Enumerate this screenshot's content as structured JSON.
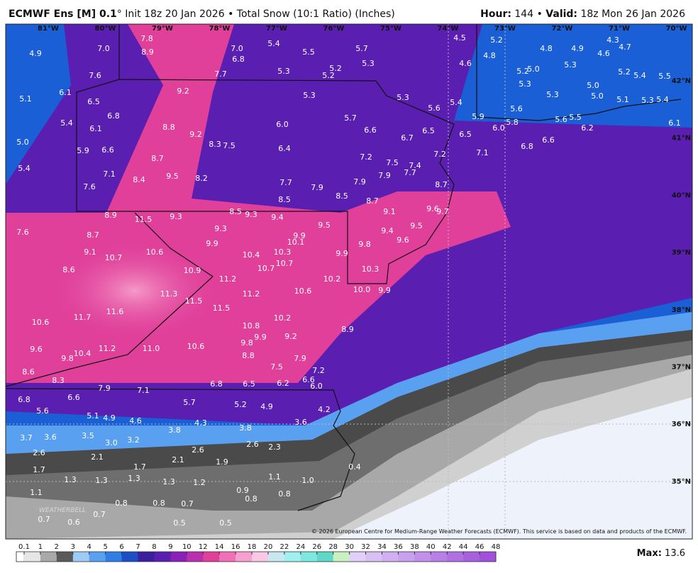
{
  "header": {
    "title_bold": "ECMWF Ens [M] 0.1",
    "title_rest": "° Init 18z 20 Jan 2026 • Total Snow (10:1 Ratio) (Inches)",
    "hour_label": "Hour:",
    "hour_value": " 144 • ",
    "valid_label": "Valid:",
    "valid_value": " 18z Mon 26 Jan 2026"
  },
  "map": {
    "lon_labels": [
      "81°W",
      "80°W",
      "79°W",
      "78°W",
      "77°W",
      "76°W",
      "75°W",
      "74°W",
      "73°W",
      "72°W",
      "71°W",
      "70°W"
    ],
    "lat_labels": [
      "42°N",
      "41°N",
      "40°N",
      "39°N",
      "38°N",
      "37°N",
      "36°N",
      "35°N"
    ],
    "labels": [
      "7.8",
      "4.9",
      "7.0",
      "8.9",
      "7.0",
      "5.4",
      "5.5",
      "5.7",
      "4.5",
      "5.2",
      "4.3",
      "4.7",
      "4.8",
      "4.9",
      "4.6",
      "4.8",
      "6.8",
      "5.3",
      "4.6",
      "5.3",
      "5.2",
      "5.2",
      "5.3",
      "5.2",
      "5.0",
      "5.2",
      "5.4",
      "5.5",
      "7.6",
      "7.7",
      "6.1",
      "5.1",
      "9.2",
      "5.3",
      "5.3",
      "5.3",
      "5.0",
      "5.3",
      "5.0",
      "5.1",
      "5.3",
      "5.4",
      "6.5",
      "5.4",
      "5.6",
      "5.6",
      "6.8",
      "5.7",
      "5.9",
      "5.6",
      "5.5",
      "5.4",
      "6.0",
      "5.8",
      "6.1",
      "6.0",
      "6.2",
      "8.8",
      "6.1",
      "9.2",
      "6.6",
      "6.5",
      "6.5",
      "6.7",
      "5.0",
      "8.3",
      "7.5",
      "6.4",
      "6.6",
      "6.8",
      "5.9",
      "6.6",
      "7.1",
      "7.2",
      "7.2",
      "8.7",
      "7.5",
      "7.4",
      "7.7",
      "5.4",
      "7.1",
      "9.5",
      "8.2",
      "8.4",
      "7.9",
      "7.7",
      "7.9",
      "7.6",
      "7.9",
      "8.7",
      "8.5",
      "8.5",
      "8.7",
      "8.5",
      "9.3",
      "8.9",
      "9.3",
      "11.5",
      "9.4",
      "9.1",
      "9.6",
      "9.7",
      "9.5",
      "9.5",
      "9.3",
      "9.4",
      "7.6",
      "8.7",
      "9.9",
      "10.1",
      "9.6",
      "9.9",
      "9.8",
      "9.1",
      "10.6",
      "10.7",
      "10.4",
      "10.3",
      "9.9",
      "10.7",
      "10.3",
      "10.7",
      "8.6",
      "10.9",
      "11.2",
      "10.2",
      "11.3",
      "11.2",
      "10.6",
      "10.0",
      "9.9",
      "11.5",
      "11.5",
      "11.6",
      "11.7",
      "10.6",
      "10.2",
      "10.8",
      "8.9",
      "9.9",
      "9.2",
      "9.8",
      "11.2",
      "11.0",
      "10.6",
      "9.6",
      "10.4",
      "9.8",
      "8.8",
      "7.9",
      "7.5",
      "7.2",
      "8.6",
      "8.3",
      "6.6",
      "6.8",
      "6.5",
      "6.2",
      "6.0",
      "7.9",
      "7.1",
      "6.6",
      "6.8",
      "5.7",
      "5.2",
      "4.9",
      "4.2",
      "5.6",
      "5.1",
      "4.9",
      "4.6",
      "4.3",
      "3.6",
      "3.8",
      "3.8",
      "3.5",
      "3.7",
      "3.6",
      "3.0",
      "3.2",
      "2.6",
      "2.3",
      "2.6",
      "2.6",
      "2.1",
      "2.1",
      "1.9",
      "1.7",
      "1.7",
      "0.4",
      "1.3",
      "1.3",
      "1.3",
      "1.3",
      "1.2",
      "1.1",
      "1.0",
      "1.1",
      "0.9",
      "0.8",
      "0.8",
      "0.8",
      "0.8",
      "0.7",
      "0.7",
      "0.6",
      "0.7",
      "0.5",
      "0.5"
    ],
    "copyright": "© 2026 European Centre for Medium-Range Weather Forecasts (ECMWF). This service is based on data and products of the ECMWF.",
    "logo": "WEATHERBELL"
  },
  "colorbar": {
    "ticks": [
      0.1,
      1,
      2,
      3,
      4,
      5,
      6,
      7,
      8,
      9,
      10,
      12,
      14,
      16,
      18,
      20,
      22,
      24,
      26,
      28,
      30,
      32,
      34,
      36,
      38,
      40,
      42,
      44,
      46,
      48
    ],
    "colors": [
      "#e6e6e6",
      "#a9a9a9",
      "#5a5a5a",
      "#9ecbf5",
      "#5aa0f0",
      "#2f7ee6",
      "#1b4fc6",
      "#3b1f9e",
      "#5a1fb0",
      "#8a20b8",
      "#b830b0",
      "#e0409a",
      "#f070b8",
      "#f5a0d0",
      "#f8c8e4",
      "#c8e8f0",
      "#a0f0f0",
      "#7ee8e0",
      "#60d8c8",
      "#c8f0c0",
      "#e0d0f8",
      "#d8c0f5",
      "#d0b0f0",
      "#c8a0ee",
      "#c090ea",
      "#b880e6",
      "#b070e2",
      "#a860de",
      "#a050da"
    ],
    "max_label": "Max:",
    "max_value": " 13.6"
  }
}
